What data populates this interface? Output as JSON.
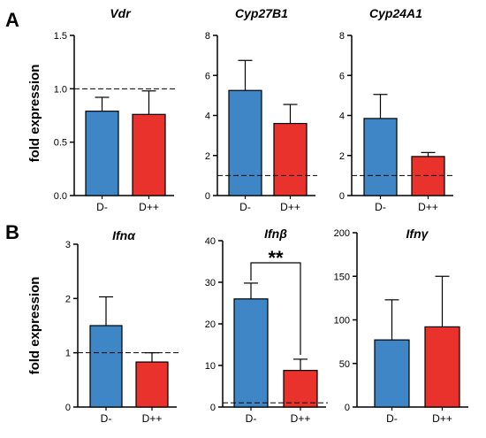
{
  "panel_labels": [
    "A",
    "B"
  ],
  "row_ylabels": [
    "fold expression",
    "fold expression"
  ],
  "colors": {
    "D-": "#3f86c6",
    "D++": "#e8322b"
  },
  "chart_data": [
    {
      "type": "bar",
      "title": "Vdr",
      "categories": [
        "D-",
        "D++"
      ],
      "values": [
        0.79,
        0.76
      ],
      "errors": [
        0.13,
        0.22
      ],
      "ylim": [
        0,
        1.5
      ],
      "yticks": [
        "0.0",
        "0.5",
        "1.0",
        "1.5"
      ],
      "reference_line": 1.0
    },
    {
      "type": "bar",
      "title": "Cyp27B1",
      "categories": [
        "D-",
        "D++"
      ],
      "values": [
        5.25,
        3.6
      ],
      "errors": [
        1.5,
        0.95
      ],
      "ylim": [
        0,
        8
      ],
      "yticks": [
        "0",
        "2",
        "4",
        "6",
        "8"
      ],
      "reference_line": 1.0
    },
    {
      "type": "bar",
      "title": "Cyp24A1",
      "categories": [
        "D-",
        "D++"
      ],
      "values": [
        3.85,
        1.95
      ],
      "errors": [
        1.2,
        0.2
      ],
      "ylim": [
        0,
        8
      ],
      "yticks": [
        "0",
        "2",
        "4",
        "6",
        "8"
      ],
      "reference_line": 1.0
    },
    {
      "type": "bar",
      "title": "Ifnα",
      "categories": [
        "D-",
        "D++"
      ],
      "values": [
        1.5,
        0.83
      ],
      "errors": [
        0.53,
        0.17
      ],
      "ylim": [
        0,
        3
      ],
      "yticks": [
        "0",
        "1",
        "2",
        "3"
      ],
      "reference_line": 1.0
    },
    {
      "type": "bar",
      "title": "Ifnβ",
      "categories": [
        "D-",
        "D++"
      ],
      "values": [
        26,
        8.8
      ],
      "errors": [
        3.8,
        2.7
      ],
      "ylim": [
        0,
        40
      ],
      "yticks": [
        "0",
        "10",
        "20",
        "30",
        "40"
      ],
      "reference_line": 1.0,
      "significance": "**"
    },
    {
      "type": "bar",
      "title": "Ifnγ",
      "categories": [
        "D-",
        "D++"
      ],
      "values": [
        77,
        92
      ],
      "errors": [
        46,
        58
      ],
      "ylim": [
        0,
        200
      ],
      "yticks": [
        "0",
        "50",
        "100",
        "150",
        "200"
      ]
    }
  ]
}
